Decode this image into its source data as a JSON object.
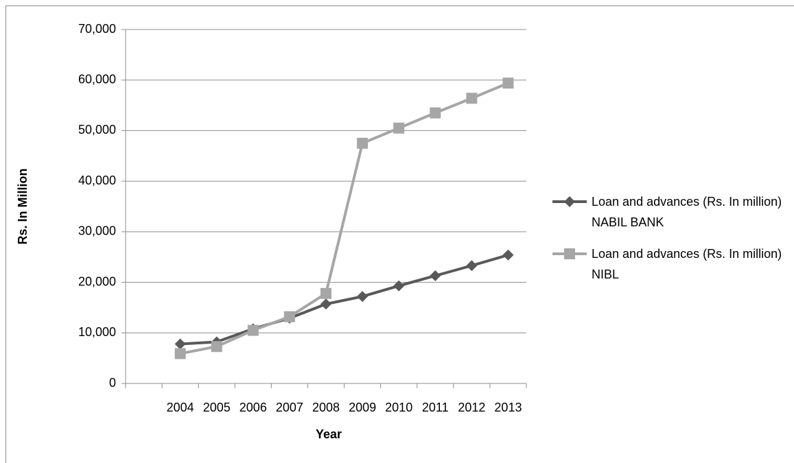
{
  "chart_data": {
    "type": "line",
    "categories": [
      null,
      "2004",
      "2005",
      "2006",
      "2007",
      "2008",
      "2009",
      "2010",
      "2011",
      "2012",
      "2013"
    ],
    "series": [
      {
        "name": "Loan and advances (Rs. In million) NABIL BANK",
        "color": "#595959",
        "marker": "diamond",
        "values": [
          null,
          7800,
          8200,
          10800,
          12900,
          15700,
          17200,
          19300,
          21300,
          23300,
          25400
        ]
      },
      {
        "name": "Loan and advances (Rs. In million) NIBL",
        "color": "#a6a6a6",
        "marker": "square",
        "values": [
          null,
          5900,
          7300,
          10500,
          13200,
          17800,
          47500,
          50500,
          53500,
          56400,
          59400
        ]
      }
    ],
    "x_label": "Year",
    "y_label": "Rs. In Million",
    "ylim": [
      0,
      70000
    ],
    "yticks": [
      0,
      {
        "value": 10000,
        "label": "10,000"
      },
      {
        "value": 20000,
        "label": "20,000"
      },
      {
        "value": 30000,
        "label": "30,000"
      },
      {
        "value": 40000,
        "label": "40,000"
      },
      {
        "value": 50000,
        "label": "50,000"
      },
      {
        "value": 60000,
        "label": "60,000"
      },
      {
        "value": 70000,
        "label": "70,000"
      }
    ],
    "grid": true,
    "legend": "right"
  }
}
